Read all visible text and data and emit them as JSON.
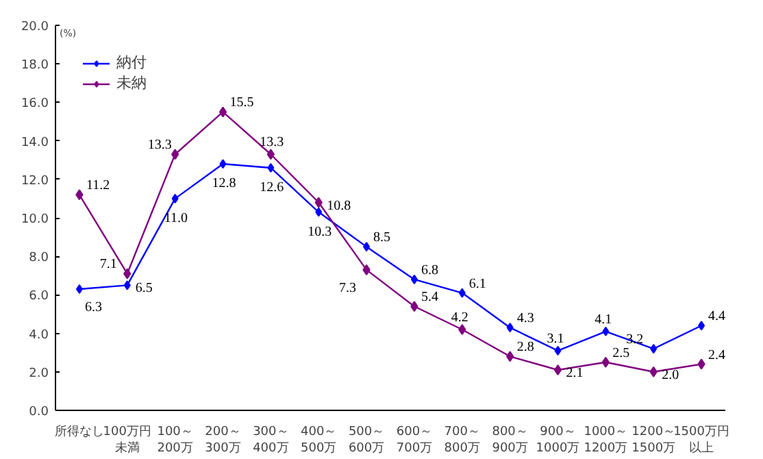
{
  "chart_data": {
    "type": "line",
    "categories": [
      "所得なし",
      "100万円未満",
      "100～\n200万",
      "200～\n300万",
      "300～\n400万",
      "400～\n500万",
      "500～\n600万",
      "600～\n700万",
      "700～\n800万",
      "800～\n900万",
      "900～\n1000万",
      "1000～\n1200万",
      "1200～\n1500万",
      "1500万円以上"
    ],
    "series": [
      {
        "name": "納付",
        "color": "#0000ff",
        "values": [
          6.3,
          6.5,
          11.0,
          12.8,
          12.6,
          10.3,
          8.5,
          6.8,
          6.1,
          4.3,
          3.1,
          4.1,
          3.2,
          4.4
        ],
        "value_labels": [
          "6.3",
          "6.5",
          "11.0",
          "12.8",
          "12.6",
          "10.3",
          "8.5",
          "6.8",
          "6.1",
          "4.3",
          "3.1",
          "4.1",
          "3.2",
          "4.4"
        ]
      },
      {
        "name": "未納",
        "color": "#800080",
        "values": [
          11.2,
          7.1,
          13.3,
          15.5,
          13.3,
          10.8,
          7.3,
          5.4,
          4.2,
          2.8,
          2.1,
          2.5,
          2.0,
          2.4
        ],
        "value_labels": [
          "11.2",
          "7.1",
          "13.3",
          "15.5",
          "13.3",
          "10.8",
          "7.3",
          "5.4",
          "4.2",
          "2.8",
          "2.1",
          "2.5",
          "2.0",
          "2.4"
        ]
      }
    ],
    "ylim": [
      0,
      20
    ],
    "yticks": [
      {
        "value": 0,
        "label": "0.0"
      },
      {
        "value": 2,
        "label": "2.0"
      },
      {
        "value": 4,
        "label": "4.0"
      },
      {
        "value": 6,
        "label": "6.0"
      },
      {
        "value": 8,
        "label": "8.0"
      },
      {
        "value": 10,
        "label": "10.0"
      },
      {
        "value": 12,
        "label": "12.0"
      },
      {
        "value": 14,
        "label": "14.0"
      },
      {
        "value": 16,
        "label": "16.0"
      },
      {
        "value": 18,
        "label": "18.0"
      },
      {
        "value": 20,
        "label": "20.0"
      }
    ],
    "ylabel": "(%)",
    "grid": false,
    "legend": "top left",
    "marker": "diamond",
    "line_style": "solid"
  }
}
